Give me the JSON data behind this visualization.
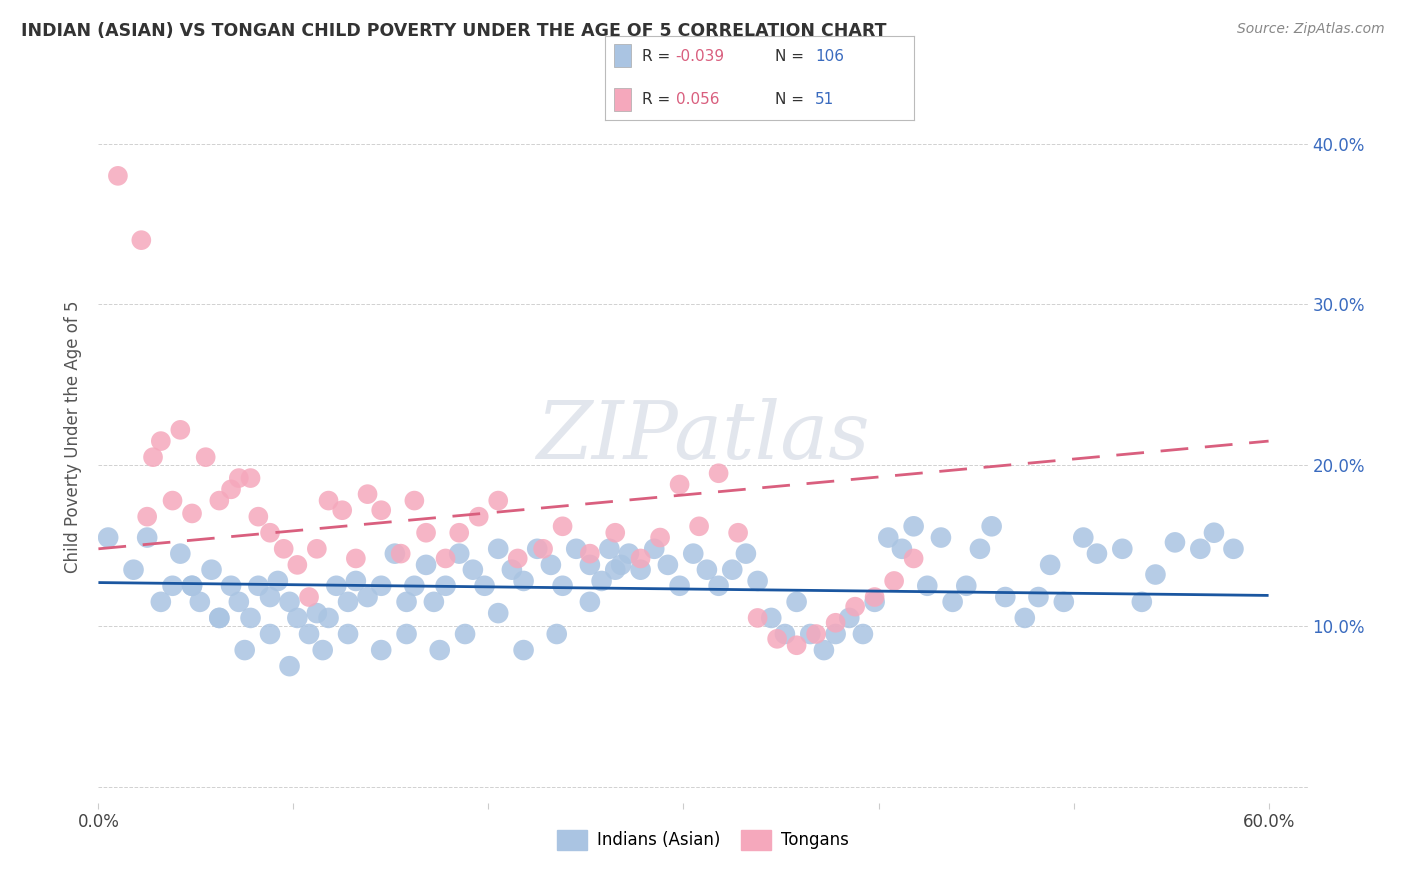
{
  "title": "INDIAN (ASIAN) VS TONGAN CHILD POVERTY UNDER THE AGE OF 5 CORRELATION CHART",
  "source": "Source: ZipAtlas.com",
  "ylabel": "Child Poverty Under the Age of 5",
  "xlim": [
    0.0,
    0.62
  ],
  "ylim": [
    -0.01,
    0.445
  ],
  "yticks": [
    0.0,
    0.1,
    0.2,
    0.3,
    0.4
  ],
  "ytick_labels": [
    "",
    "10.0%",
    "20.0%",
    "30.0%",
    "40.0%"
  ],
  "xticks": [
    0.0,
    0.1,
    0.2,
    0.3,
    0.4,
    0.5,
    0.6
  ],
  "xtick_labels": [
    "0.0%",
    "",
    "",
    "",
    "",
    "",
    "60.0%"
  ],
  "blue_R": -0.039,
  "blue_N": 106,
  "pink_R": 0.056,
  "pink_N": 51,
  "blue_color": "#aac4e2",
  "pink_color": "#f5a8bc",
  "blue_line_color": "#1a56a0",
  "pink_line_color": "#d95f7e",
  "legend_text_color": "#3a6bbf",
  "legend_r_color": "#d95f7e",
  "watermark": "ZIPatlas",
  "blue_line_y0": 0.127,
  "blue_line_y1": 0.119,
  "pink_line_y0": 0.148,
  "pink_line_y1": 0.215,
  "blue_scatter_x": [
    0.005,
    0.018,
    0.025,
    0.032,
    0.038,
    0.042,
    0.048,
    0.052,
    0.058,
    0.062,
    0.068,
    0.072,
    0.078,
    0.082,
    0.088,
    0.092,
    0.098,
    0.102,
    0.108,
    0.112,
    0.118,
    0.122,
    0.128,
    0.132,
    0.138,
    0.145,
    0.152,
    0.158,
    0.162,
    0.168,
    0.172,
    0.178,
    0.185,
    0.192,
    0.198,
    0.205,
    0.212,
    0.218,
    0.225,
    0.232,
    0.238,
    0.245,
    0.252,
    0.258,
    0.262,
    0.268,
    0.272,
    0.278,
    0.285,
    0.292,
    0.298,
    0.305,
    0.312,
    0.318,
    0.325,
    0.332,
    0.338,
    0.345,
    0.352,
    0.358,
    0.365,
    0.372,
    0.378,
    0.385,
    0.392,
    0.398,
    0.405,
    0.412,
    0.418,
    0.425,
    0.432,
    0.438,
    0.445,
    0.452,
    0.458,
    0.465,
    0.475,
    0.482,
    0.488,
    0.495,
    0.505,
    0.512,
    0.525,
    0.535,
    0.542,
    0.552,
    0.565,
    0.572,
    0.582,
    0.048,
    0.062,
    0.075,
    0.088,
    0.098,
    0.115,
    0.128,
    0.145,
    0.158,
    0.175,
    0.188,
    0.205,
    0.218,
    0.235,
    0.252,
    0.265
  ],
  "blue_scatter_y": [
    0.155,
    0.135,
    0.155,
    0.115,
    0.125,
    0.145,
    0.125,
    0.115,
    0.135,
    0.105,
    0.125,
    0.115,
    0.105,
    0.125,
    0.118,
    0.128,
    0.115,
    0.105,
    0.095,
    0.108,
    0.105,
    0.125,
    0.115,
    0.128,
    0.118,
    0.125,
    0.145,
    0.115,
    0.125,
    0.138,
    0.115,
    0.125,
    0.145,
    0.135,
    0.125,
    0.148,
    0.135,
    0.128,
    0.148,
    0.138,
    0.125,
    0.148,
    0.138,
    0.128,
    0.148,
    0.138,
    0.145,
    0.135,
    0.148,
    0.138,
    0.125,
    0.145,
    0.135,
    0.125,
    0.135,
    0.145,
    0.128,
    0.105,
    0.095,
    0.115,
    0.095,
    0.085,
    0.095,
    0.105,
    0.095,
    0.115,
    0.155,
    0.148,
    0.162,
    0.125,
    0.155,
    0.115,
    0.125,
    0.148,
    0.162,
    0.118,
    0.105,
    0.118,
    0.138,
    0.115,
    0.155,
    0.145,
    0.148,
    0.115,
    0.132,
    0.152,
    0.148,
    0.158,
    0.148,
    0.125,
    0.105,
    0.085,
    0.095,
    0.075,
    0.085,
    0.095,
    0.085,
    0.095,
    0.085,
    0.095,
    0.108,
    0.085,
    0.095,
    0.115,
    0.135
  ],
  "pink_scatter_x": [
    0.01,
    0.022,
    0.028,
    0.032,
    0.038,
    0.042,
    0.048,
    0.055,
    0.062,
    0.068,
    0.072,
    0.078,
    0.082,
    0.088,
    0.095,
    0.102,
    0.108,
    0.112,
    0.118,
    0.125,
    0.132,
    0.138,
    0.145,
    0.155,
    0.162,
    0.168,
    0.178,
    0.185,
    0.195,
    0.205,
    0.215,
    0.228,
    0.238,
    0.252,
    0.265,
    0.278,
    0.288,
    0.298,
    0.308,
    0.318,
    0.328,
    0.338,
    0.348,
    0.358,
    0.368,
    0.378,
    0.388,
    0.398,
    0.408,
    0.418,
    0.025
  ],
  "pink_scatter_y": [
    0.38,
    0.34,
    0.205,
    0.215,
    0.178,
    0.222,
    0.17,
    0.205,
    0.178,
    0.185,
    0.192,
    0.192,
    0.168,
    0.158,
    0.148,
    0.138,
    0.118,
    0.148,
    0.178,
    0.172,
    0.142,
    0.182,
    0.172,
    0.145,
    0.178,
    0.158,
    0.142,
    0.158,
    0.168,
    0.178,
    0.142,
    0.148,
    0.162,
    0.145,
    0.158,
    0.142,
    0.155,
    0.188,
    0.162,
    0.195,
    0.158,
    0.105,
    0.092,
    0.088,
    0.095,
    0.102,
    0.112,
    0.118,
    0.128,
    0.142,
    0.168
  ]
}
